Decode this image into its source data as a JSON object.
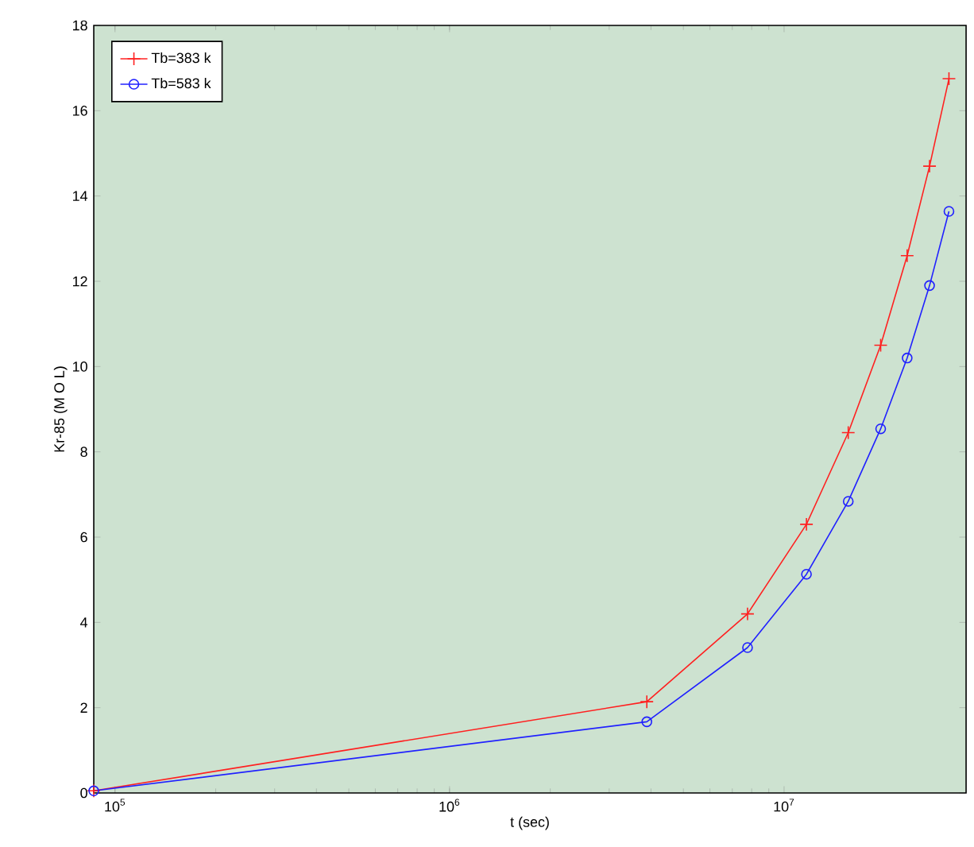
{
  "chart_data": {
    "type": "line",
    "xlabel": "t (sec)",
    "ylabel": "Kr-85 (M O L)",
    "log": "x",
    "xlim": [
      86400,
      35000000
    ],
    "ylim": [
      0,
      18
    ],
    "xticks": [
      {
        "value": 100000,
        "label": "10$^{5}$"
      },
      {
        "value": 1000000,
        "label": "10$^{6}$"
      },
      {
        "value": 10000000,
        "label": "10$^{7}$"
      }
    ],
    "yticks": [
      0,
      2,
      4,
      6,
      8,
      10,
      12,
      14,
      16,
      18
    ],
    "x": [
      86400,
      3888000,
      7776000,
      11664000,
      15552000,
      19440000,
      23328000,
      27216000,
      31104000
    ],
    "legend": "top left",
    "grid": false,
    "series": [
      {
        "name": "Tb=383 k",
        "color": "#ff2020",
        "marker": "cross",
        "values": [
          0.05,
          2.14,
          4.2,
          6.3,
          8.45,
          10.5,
          12.6,
          14.7,
          16.75
        ]
      },
      {
        "name": "Tb=583 k",
        "color": "#2020ff",
        "marker": "circle",
        "values": [
          0.05,
          1.67,
          3.41,
          5.13,
          6.84,
          8.54,
          10.2,
          11.9,
          13.64
        ]
      }
    ]
  }
}
